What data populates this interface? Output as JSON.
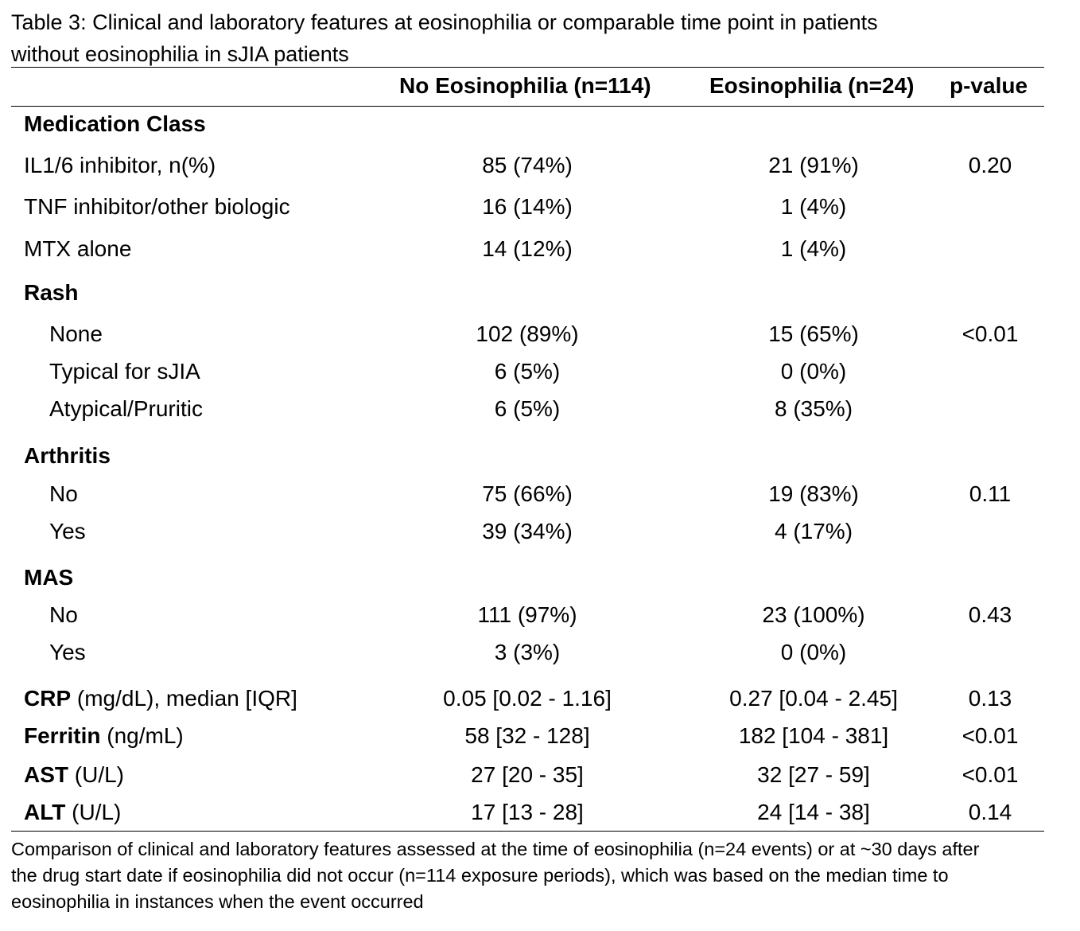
{
  "caption": {
    "line1": "Table 3:  Clinical and laboratory features at eosinophilia or comparable time point in patients",
    "line2": "without eosinophilia in sJIA patients"
  },
  "headers": {
    "no_eos": "No Eosinophilia (n=114)",
    "eos": "Eosinophilia (n=24)",
    "pvalue": "p-value"
  },
  "sections": {
    "medication": "Medication Class",
    "rash": "Rash",
    "arthritis": "Arthritis",
    "mas": "MAS"
  },
  "rows": {
    "il16": {
      "label": "IL1/6 inhibitor, n(%)",
      "no_eos": "85 (74%)",
      "eos": "21 (91%)",
      "p": "0.20"
    },
    "tnf": {
      "label": "TNF inhibitor/other biologic",
      "no_eos": "16 (14%)",
      "eos": "1 (4%)",
      "p": ""
    },
    "mtx": {
      "label": "MTX alone",
      "no_eos": "14 (12%)",
      "eos": "1 (4%)",
      "p": ""
    },
    "rash_none": {
      "label": "None",
      "no_eos": "102 (89%)",
      "eos": "15 (65%)",
      "p": "<0.01"
    },
    "rash_typical": {
      "label": "Typical for sJIA",
      "no_eos": "6 (5%)",
      "eos": "0 (0%)",
      "p": ""
    },
    "rash_atypical": {
      "label": "Atypical/Pruritic",
      "no_eos": "6 (5%)",
      "eos": "8 (35%)",
      "p": ""
    },
    "arth_no": {
      "label": "No",
      "no_eos": "75 (66%)",
      "eos": "19 (83%)",
      "p": "0.11"
    },
    "arth_yes": {
      "label": "Yes",
      "no_eos": "39 (34%)",
      "eos": "4 (17%)",
      "p": ""
    },
    "mas_no": {
      "label": "No",
      "no_eos": "111 (97%)",
      "eos": "23 (100%)",
      "p": "0.43"
    },
    "mas_yes": {
      "label": "Yes",
      "no_eos": "3 (3%)",
      "eos": "0 (0%)",
      "p": ""
    },
    "crp": {
      "label_bold": "CRP",
      "label_rest": " (mg/dL), median [IQR]",
      "no_eos": "0.05 [0.02 - 1.16]",
      "eos": "0.27 [0.04 - 2.45]",
      "p": "0.13"
    },
    "ferritin": {
      "label_bold": "Ferritin",
      "label_rest": " (ng/mL)",
      "no_eos": "58 [32 - 128]",
      "eos": "182 [104 - 381]",
      "p": "<0.01"
    },
    "ast": {
      "label_bold": "AST",
      "label_rest": " (U/L)",
      "no_eos": "27 [20 - 35]",
      "eos": "32 [27 - 59]",
      "p": "<0.01"
    },
    "alt": {
      "label_bold": "ALT",
      "label_rest": " (U/L)",
      "no_eos": "17 [13 - 28]",
      "eos": "24 [14 - 38]",
      "p": "0.14"
    }
  },
  "footnote": {
    "line1": "Comparison of clinical and laboratory features assessed at the time of eosinophilia (n=24 events) or at ~30 days after",
    "line2": "the drug start date if eosinophilia did not occur (n=114 exposure periods), which was based on the median time to",
    "line3": "eosinophilia in instances when the event occurred"
  }
}
